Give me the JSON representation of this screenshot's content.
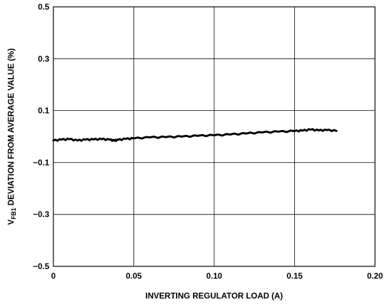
{
  "chart_data": {
    "type": "line",
    "xlabel": "INVERTING REGULATOR LOAD (A)",
    "ylabel_prefix": "V",
    "ylabel_subscript": "FB1",
    "ylabel_rest": " DEVIATION FROM AVERAGE VALUE (%)",
    "xlim": [
      0,
      0.2
    ],
    "ylim": [
      -0.5,
      0.5
    ],
    "x_ticks": [
      0,
      0.05,
      0.1,
      0.15,
      0.2
    ],
    "x_tick_labels": [
      "0",
      "0.05",
      "0.10",
      "0.15",
      "0.20"
    ],
    "y_ticks": [
      0.5,
      0.3,
      0.1,
      -0.1,
      -0.3,
      -0.5
    ],
    "y_tick_labels": [
      "0.5",
      "0.3",
      "0.1",
      "−0.1",
      "−0.3",
      "−0.5"
    ],
    "grid": true,
    "series": [
      {
        "x": [
          0,
          0.005,
          0.01,
          0.015,
          0.02,
          0.025,
          0.03,
          0.035,
          0.038,
          0.04,
          0.045,
          0.05,
          0.06,
          0.07,
          0.08,
          0.09,
          0.1,
          0.11,
          0.12,
          0.13,
          0.14,
          0.15,
          0.155,
          0.16,
          0.165,
          0.17,
          0.176
        ],
        "y": [
          -0.015,
          -0.012,
          -0.01,
          -0.015,
          -0.012,
          -0.011,
          -0.01,
          -0.012,
          -0.016,
          -0.013,
          -0.009,
          -0.007,
          -0.003,
          -0.002,
          0.0,
          0.003,
          0.005,
          0.008,
          0.012,
          0.016,
          0.019,
          0.021,
          0.023,
          0.027,
          0.024,
          0.025,
          0.022
        ],
        "color": "#000000"
      }
    ]
  }
}
